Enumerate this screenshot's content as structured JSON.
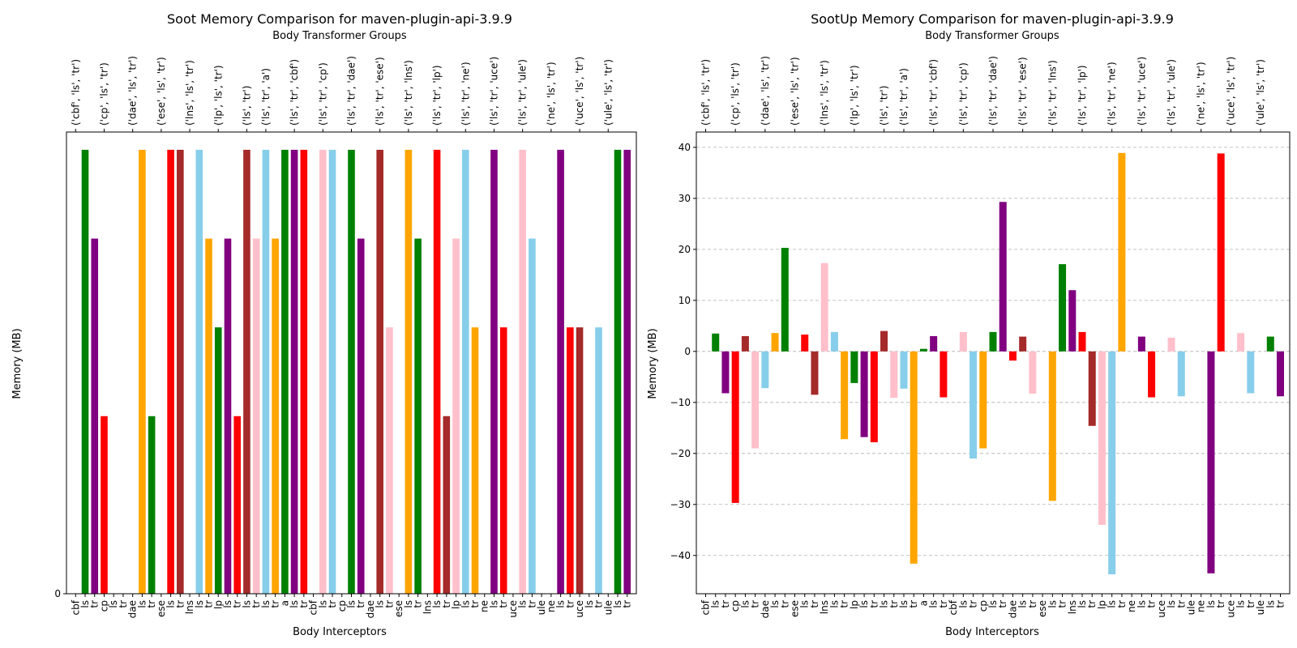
{
  "chart_data": [
    {
      "type": "bar",
      "title": "Soot Memory Comparison for maven-plugin-api-3.9.9",
      "xlabel": "Body Interceptors",
      "ylabel": "Memory (MB)",
      "top_xlabel": "Body Transformer Groups",
      "yticks": [
        "0"
      ],
      "ylim": [
        0,
        5.2
      ],
      "grid": false,
      "groups": [
        {
          "label": "('cbf', 'ls', 'tr')",
          "bars": [
            {
              "label": "cbf",
              "value": 0,
              "color": "#008000"
            },
            {
              "label": "ls",
              "value": 5,
              "color": "#008000"
            },
            {
              "label": "tr",
              "value": 4,
              "color": "#800080"
            }
          ]
        },
        {
          "label": "('cp', 'ls', 'tr')",
          "bars": [
            {
              "label": "cp",
              "value": 2,
              "color": "#ff0000"
            },
            {
              "label": "ls",
              "value": 0,
              "color": "#ffc0cb"
            },
            {
              "label": "tr",
              "value": 0,
              "color": "#87ceeb"
            }
          ]
        },
        {
          "label": "('dae', 'ls', 'tr')",
          "bars": [
            {
              "label": "dae",
              "value": 0,
              "color": "#a52a2a"
            },
            {
              "label": "ls",
              "value": 5,
              "color": "#ffa500"
            },
            {
              "label": "tr",
              "value": 2,
              "color": "#008000"
            }
          ]
        },
        {
          "label": "('ese', 'ls', 'tr')",
          "bars": [
            {
              "label": "ese",
              "value": 0,
              "color": "#800080"
            },
            {
              "label": "ls",
              "value": 5,
              "color": "#ff0000"
            },
            {
              "label": "tr",
              "value": 5,
              "color": "#a52a2a"
            }
          ]
        },
        {
          "label": "('lns', 'ls', 'tr')",
          "bars": [
            {
              "label": "lns",
              "value": 0,
              "color": "#ffc0cb"
            },
            {
              "label": "ls",
              "value": 5,
              "color": "#87ceeb"
            },
            {
              "label": "tr",
              "value": 4,
              "color": "#ffa500"
            }
          ]
        },
        {
          "label": "('lp', 'ls', 'tr')",
          "bars": [
            {
              "label": "lp",
              "value": 3,
              "color": "#008000"
            },
            {
              "label": "ls",
              "value": 4,
              "color": "#800080"
            },
            {
              "label": "tr",
              "value": 2,
              "color": "#ff0000"
            }
          ]
        },
        {
          "label": "('ls', 'tr')",
          "bars": [
            {
              "label": "ls",
              "value": 5,
              "color": "#a52a2a"
            },
            {
              "label": "tr",
              "value": 4,
              "color": "#ffc0cb"
            }
          ]
        },
        {
          "label": "('ls', 'tr', 'a')",
          "bars": [
            {
              "label": "ls",
              "value": 5,
              "color": "#87ceeb"
            },
            {
              "label": "tr",
              "value": 4,
              "color": "#ffa500"
            },
            {
              "label": "a",
              "value": 5,
              "color": "#008000"
            }
          ]
        },
        {
          "label": "('ls', 'tr', 'cbf')",
          "bars": [
            {
              "label": "ls",
              "value": 5,
              "color": "#800080"
            },
            {
              "label": "tr",
              "value": 5,
              "color": "#ff0000"
            },
            {
              "label": "cbf",
              "value": 0,
              "color": "#a52a2a"
            }
          ]
        },
        {
          "label": "('ls', 'tr', 'cp')",
          "bars": [
            {
              "label": "ls",
              "value": 5,
              "color": "#ffc0cb"
            },
            {
              "label": "tr",
              "value": 5,
              "color": "#87ceeb"
            },
            {
              "label": "cp",
              "value": 0,
              "color": "#ffa500"
            }
          ]
        },
        {
          "label": "('ls', 'tr', 'dae')",
          "bars": [
            {
              "label": "ls",
              "value": 5,
              "color": "#008000"
            },
            {
              "label": "tr",
              "value": 4,
              "color": "#800080"
            },
            {
              "label": "dae",
              "value": 0,
              "color": "#ff0000"
            }
          ]
        },
        {
          "label": "('ls', 'tr', 'ese')",
          "bars": [
            {
              "label": "ls",
              "value": 5,
              "color": "#a52a2a"
            },
            {
              "label": "tr",
              "value": 3,
              "color": "#ffc0cb"
            },
            {
              "label": "ese",
              "value": 0,
              "color": "#87ceeb"
            }
          ]
        },
        {
          "label": "('ls', 'tr', 'lns')",
          "bars": [
            {
              "label": "ls",
              "value": 5,
              "color": "#ffa500"
            },
            {
              "label": "tr",
              "value": 4,
              "color": "#008000"
            },
            {
              "label": "lns",
              "value": 0,
              "color": "#800080"
            }
          ]
        },
        {
          "label": "('ls', 'tr', 'lp')",
          "bars": [
            {
              "label": "ls",
              "value": 5,
              "color": "#ff0000"
            },
            {
              "label": "tr",
              "value": 2,
              "color": "#a52a2a"
            },
            {
              "label": "lp",
              "value": 4,
              "color": "#ffc0cb"
            }
          ]
        },
        {
          "label": "('ls', 'tr', 'ne')",
          "bars": [
            {
              "label": "ls",
              "value": 5,
              "color": "#87ceeb"
            },
            {
              "label": "tr",
              "value": 3,
              "color": "#ffa500"
            },
            {
              "label": "ne",
              "value": 0,
              "color": "#008000"
            }
          ]
        },
        {
          "label": "('ls', 'tr', 'uce')",
          "bars": [
            {
              "label": "ls",
              "value": 5,
              "color": "#800080"
            },
            {
              "label": "tr",
              "value": 3,
              "color": "#ff0000"
            },
            {
              "label": "uce",
              "value": 0,
              "color": "#a52a2a"
            }
          ]
        },
        {
          "label": "('ls', 'tr', 'ule')",
          "bars": [
            {
              "label": "ls",
              "value": 5,
              "color": "#ffc0cb"
            },
            {
              "label": "tr",
              "value": 4,
              "color": "#87ceeb"
            },
            {
              "label": "ule",
              "value": 0,
              "color": "#ffa500"
            }
          ]
        },
        {
          "label": "('ne', 'ls', 'tr')",
          "bars": [
            {
              "label": "ne",
              "value": 0,
              "color": "#008000"
            },
            {
              "label": "ls",
              "value": 5,
              "color": "#800080"
            },
            {
              "label": "tr",
              "value": 3,
              "color": "#ff0000"
            }
          ]
        },
        {
          "label": "('uce', 'ls', 'tr')",
          "bars": [
            {
              "label": "uce",
              "value": 3,
              "color": "#a52a2a"
            },
            {
              "label": "ls",
              "value": 0,
              "color": "#ffc0cb"
            },
            {
              "label": "tr",
              "value": 3,
              "color": "#87ceeb"
            }
          ]
        },
        {
          "label": "('ule', 'ls', 'tr')",
          "bars": [
            {
              "label": "ule",
              "value": 0,
              "color": "#ffa500"
            },
            {
              "label": "ls",
              "value": 5,
              "color": "#008000"
            },
            {
              "label": "tr",
              "value": 5,
              "color": "#800080"
            }
          ]
        }
      ]
    },
    {
      "type": "bar",
      "title": "SootUp Memory Comparison for maven-plugin-api-3.9.9",
      "xlabel": "Body Interceptors",
      "ylabel": "Memory (MB)",
      "top_xlabel": "Body Transformer Groups",
      "yticks": [
        "40",
        "30",
        "20",
        "10",
        "0",
        "−10",
        "−20",
        "−30",
        "−40"
      ],
      "ylim": [
        -47.5,
        43
      ],
      "grid": true,
      "groups": [
        {
          "label": "('cbf', 'ls', 'tr')",
          "bars": [
            {
              "label": "cbf",
              "value": 0,
              "color": "#008000"
            },
            {
              "label": "ls",
              "value": 3.5,
              "color": "#008000"
            },
            {
              "label": "tr",
              "value": -8.2,
              "color": "#800080"
            }
          ]
        },
        {
          "label": "('cp', 'ls', 'tr')",
          "bars": [
            {
              "label": "cp",
              "value": -29.7,
              "color": "#ff0000"
            },
            {
              "label": "ls",
              "value": 3.0,
              "color": "#a52a2a"
            },
            {
              "label": "tr",
              "value": -19.0,
              "color": "#ffc0cb"
            }
          ]
        },
        {
          "label": "('dae', 'ls', 'tr')",
          "bars": [
            {
              "label": "dae",
              "value": -7.2,
              "color": "#87ceeb"
            },
            {
              "label": "ls",
              "value": 3.6,
              "color": "#ffa500"
            },
            {
              "label": "tr",
              "value": 20.3,
              "color": "#008000"
            }
          ]
        },
        {
          "label": "('ese', 'ls', 'tr')",
          "bars": [
            {
              "label": "ese",
              "value": 0,
              "color": "#800080"
            },
            {
              "label": "ls",
              "value": 3.3,
              "color": "#ff0000"
            },
            {
              "label": "tr",
              "value": -8.5,
              "color": "#a52a2a"
            }
          ]
        },
        {
          "label": "('lns', 'ls', 'tr')",
          "bars": [
            {
              "label": "lns",
              "value": 17.3,
              "color": "#ffc0cb"
            },
            {
              "label": "ls",
              "value": 3.8,
              "color": "#87ceeb"
            },
            {
              "label": "tr",
              "value": -17.2,
              "color": "#ffa500"
            }
          ]
        },
        {
          "label": "('lp', 'ls', 'tr')",
          "bars": [
            {
              "label": "lp",
              "value": -6.2,
              "color": "#008000"
            },
            {
              "label": "ls",
              "value": -16.8,
              "color": "#800080"
            },
            {
              "label": "tr",
              "value": -17.8,
              "color": "#ff0000"
            }
          ]
        },
        {
          "label": "('ls', 'tr')",
          "bars": [
            {
              "label": "ls",
              "value": 4.0,
              "color": "#a52a2a"
            },
            {
              "label": "tr",
              "value": -9.1,
              "color": "#ffc0cb"
            }
          ]
        },
        {
          "label": "('ls', 'tr', 'a')",
          "bars": [
            {
              "label": "ls",
              "value": -7.3,
              "color": "#87ceeb"
            },
            {
              "label": "tr",
              "value": -41.6,
              "color": "#ffa500"
            },
            {
              "label": "a",
              "value": 0.5,
              "color": "#008000"
            }
          ]
        },
        {
          "label": "('ls', 'tr', 'cbf')",
          "bars": [
            {
              "label": "ls",
              "value": 3.0,
              "color": "#800080"
            },
            {
              "label": "tr",
              "value": -9.0,
              "color": "#ff0000"
            },
            {
              "label": "cbf",
              "value": 0,
              "color": "#a52a2a"
            }
          ]
        },
        {
          "label": "('ls', 'tr', 'cp')",
          "bars": [
            {
              "label": "ls",
              "value": 3.8,
              "color": "#ffc0cb"
            },
            {
              "label": "tr",
              "value": -21.0,
              "color": "#87ceeb"
            },
            {
              "label": "cp",
              "value": -19.0,
              "color": "#ffa500"
            }
          ]
        },
        {
          "label": "('ls', 'tr', 'dae')",
          "bars": [
            {
              "label": "ls",
              "value": 3.8,
              "color": "#008000"
            },
            {
              "label": "tr",
              "value": 29.3,
              "color": "#800080"
            },
            {
              "label": "dae",
              "value": -1.8,
              "color": "#ff0000"
            }
          ]
        },
        {
          "label": "('ls', 'tr', 'ese')",
          "bars": [
            {
              "label": "ls",
              "value": 2.9,
              "color": "#a52a2a"
            },
            {
              "label": "tr",
              "value": -8.3,
              "color": "#ffc0cb"
            },
            {
              "label": "ese",
              "value": 0,
              "color": "#87ceeb"
            }
          ]
        },
        {
          "label": "('ls', 'tr', 'lns')",
          "bars": [
            {
              "label": "ls",
              "value": -29.3,
              "color": "#ffa500"
            },
            {
              "label": "tr",
              "value": 17.1,
              "color": "#008000"
            },
            {
              "label": "lns",
              "value": 12.0,
              "color": "#800080"
            }
          ]
        },
        {
          "label": "('ls', 'tr', 'lp')",
          "bars": [
            {
              "label": "ls",
              "value": 3.8,
              "color": "#ff0000"
            },
            {
              "label": "tr",
              "value": -14.6,
              "color": "#a52a2a"
            },
            {
              "label": "lp",
              "value": -34.0,
              "color": "#ffc0cb"
            }
          ]
        },
        {
          "label": "('ls', 'tr', 'ne')",
          "bars": [
            {
              "label": "ls",
              "value": -43.7,
              "color": "#87ceeb"
            },
            {
              "label": "tr",
              "value": 38.9,
              "color": "#ffa500"
            },
            {
              "label": "ne",
              "value": 0,
              "color": "#008000"
            }
          ]
        },
        {
          "label": "('ls', 'tr', 'uce')",
          "bars": [
            {
              "label": "ls",
              "value": 2.9,
              "color": "#800080"
            },
            {
              "label": "tr",
              "value": -9.0,
              "color": "#ff0000"
            },
            {
              "label": "uce",
              "value": 0,
              "color": "#a52a2a"
            }
          ]
        },
        {
          "label": "('ls', 'tr', 'ule')",
          "bars": [
            {
              "label": "ls",
              "value": 2.7,
              "color": "#ffc0cb"
            },
            {
              "label": "tr",
              "value": -8.8,
              "color": "#87ceeb"
            },
            {
              "label": "ule",
              "value": 0,
              "color": "#ffa500"
            }
          ]
        },
        {
          "label": "('ne', 'ls', 'tr')",
          "bars": [
            {
              "label": "ne",
              "value": 0,
              "color": "#008000"
            },
            {
              "label": "ls",
              "value": -43.5,
              "color": "#800080"
            },
            {
              "label": "tr",
              "value": 38.8,
              "color": "#ff0000"
            }
          ]
        },
        {
          "label": "('uce', 'ls', 'tr')",
          "bars": [
            {
              "label": "uce",
              "value": 0,
              "color": "#a52a2a"
            },
            {
              "label": "ls",
              "value": 3.6,
              "color": "#ffc0cb"
            },
            {
              "label": "tr",
              "value": -8.2,
              "color": "#87ceeb"
            }
          ]
        },
        {
          "label": "('ule', 'ls', 'tr')",
          "bars": [
            {
              "label": "ule",
              "value": 0,
              "color": "#ffa500"
            },
            {
              "label": "ls",
              "value": 2.9,
              "color": "#008000"
            },
            {
              "label": "tr",
              "value": -8.8,
              "color": "#800080"
            }
          ]
        }
      ]
    }
  ]
}
